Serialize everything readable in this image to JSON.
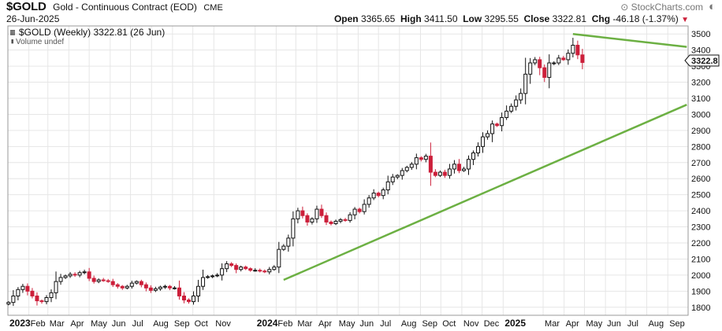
{
  "header": {
    "symbol": "$GOLD",
    "description": "Gold - Continuous Contract (EOD)",
    "exchange": "CME",
    "date": "26-Jun-2025",
    "brand": "StockCharts.com",
    "open_label": "Open",
    "open_value": "3365.65",
    "high_label": "High",
    "high_value": "3411.50",
    "low_label": "Low",
    "low_value": "3295.55",
    "close_label": "Close",
    "close_value": "3322.81",
    "chg_label": "Chg",
    "chg_value": "-46.18 (-1.37%)"
  },
  "legend": {
    "price_label": "$GOLD (Weekly) 3322.81 (26 Jun)",
    "volume_label": "Volume undef"
  },
  "last_price_tag": "3322.8",
  "colors": {
    "up": "#111111",
    "down": "#cc1f3a",
    "trendline": "#6cb043",
    "grid": "#e6e6e6"
  },
  "chart_data": {
    "type": "candlestick",
    "interval": "weekly",
    "ylim": [
      1750,
      3550
    ],
    "y_ticks": [
      1800,
      1900,
      2000,
      2100,
      2200,
      2300,
      2400,
      2500,
      2600,
      2700,
      2800,
      2900,
      3000,
      3100,
      3200,
      3300,
      3400,
      3500
    ],
    "x_labels": [
      {
        "label": "2023",
        "bold": true
      },
      {
        "label": "Feb"
      },
      {
        "label": "Mar"
      },
      {
        "label": "Apr"
      },
      {
        "label": "May"
      },
      {
        "label": "Jun"
      },
      {
        "label": "Jul"
      },
      {
        "label": "Aug"
      },
      {
        "label": "Sep"
      },
      {
        "label": "Oct"
      },
      {
        "label": "Nov"
      },
      {
        "label": "2024",
        "bold": true
      },
      {
        "label": "Feb"
      },
      {
        "label": "Mar"
      },
      {
        "label": "Apr"
      },
      {
        "label": "May"
      },
      {
        "label": "Jun"
      },
      {
        "label": "Jul"
      },
      {
        "label": "Aug"
      },
      {
        "label": "Sep"
      },
      {
        "label": "Oct"
      },
      {
        "label": "Nov"
      },
      {
        "label": "Dec"
      },
      {
        "label": "2025",
        "bold": true
      },
      {
        "label": "Mar"
      },
      {
        "label": "Apr"
      },
      {
        "label": "May"
      },
      {
        "label": "Jun"
      },
      {
        "label": "Jul"
      },
      {
        "label": "Aug"
      },
      {
        "label": "Sep"
      }
    ],
    "grid": true,
    "start_week": "2023-01-02",
    "closes": [
      1830,
      1870,
      1910,
      1930,
      1900,
      1870,
      1840,
      1835,
      1860,
      1890,
      1960,
      1985,
      1995,
      2005,
      2000,
      2015,
      2020,
      1980,
      1960,
      1970,
      1965,
      1960,
      1940,
      1930,
      1920,
      1930,
      1950,
      1960,
      1940,
      1920,
      1905,
      1915,
      1925,
      1930,
      1920,
      1920,
      1870,
      1845,
      1835,
      1870,
      1930,
      1985,
      1990,
      1995,
      2000,
      2040,
      2070,
      2060,
      2035,
      2050,
      2040,
      2030,
      2030,
      2025,
      2020,
      2035,
      2050,
      2160,
      2180,
      2230,
      2350,
      2400,
      2370,
      2330,
      2350,
      2410,
      2370,
      2330,
      2320,
      2335,
      2345,
      2340,
      2375,
      2410,
      2395,
      2440,
      2480,
      2510,
      2495,
      2530,
      2580,
      2610,
      2620,
      2650,
      2670,
      2690,
      2730,
      2720,
      2740,
      2640,
      2620,
      2640,
      2620,
      2660,
      2690,
      2650,
      2660,
      2720,
      2760,
      2800,
      2860,
      2880,
      2940,
      2930,
      2980,
      3020,
      3050,
      3090,
      3130,
      3250,
      3320,
      3340,
      3290,
      3230,
      3320,
      3320,
      3350,
      3340,
      3380,
      3430,
      3370,
      3322.81
    ],
    "trendlines": [
      {
        "from": [
          "2024-02-12",
          1970
        ],
        "to": [
          "2025-09-29",
          3060
        ]
      },
      {
        "from": [
          "2025-04-14",
          3500
        ],
        "to": [
          "2025-09-29",
          3420
        ]
      }
    ]
  }
}
